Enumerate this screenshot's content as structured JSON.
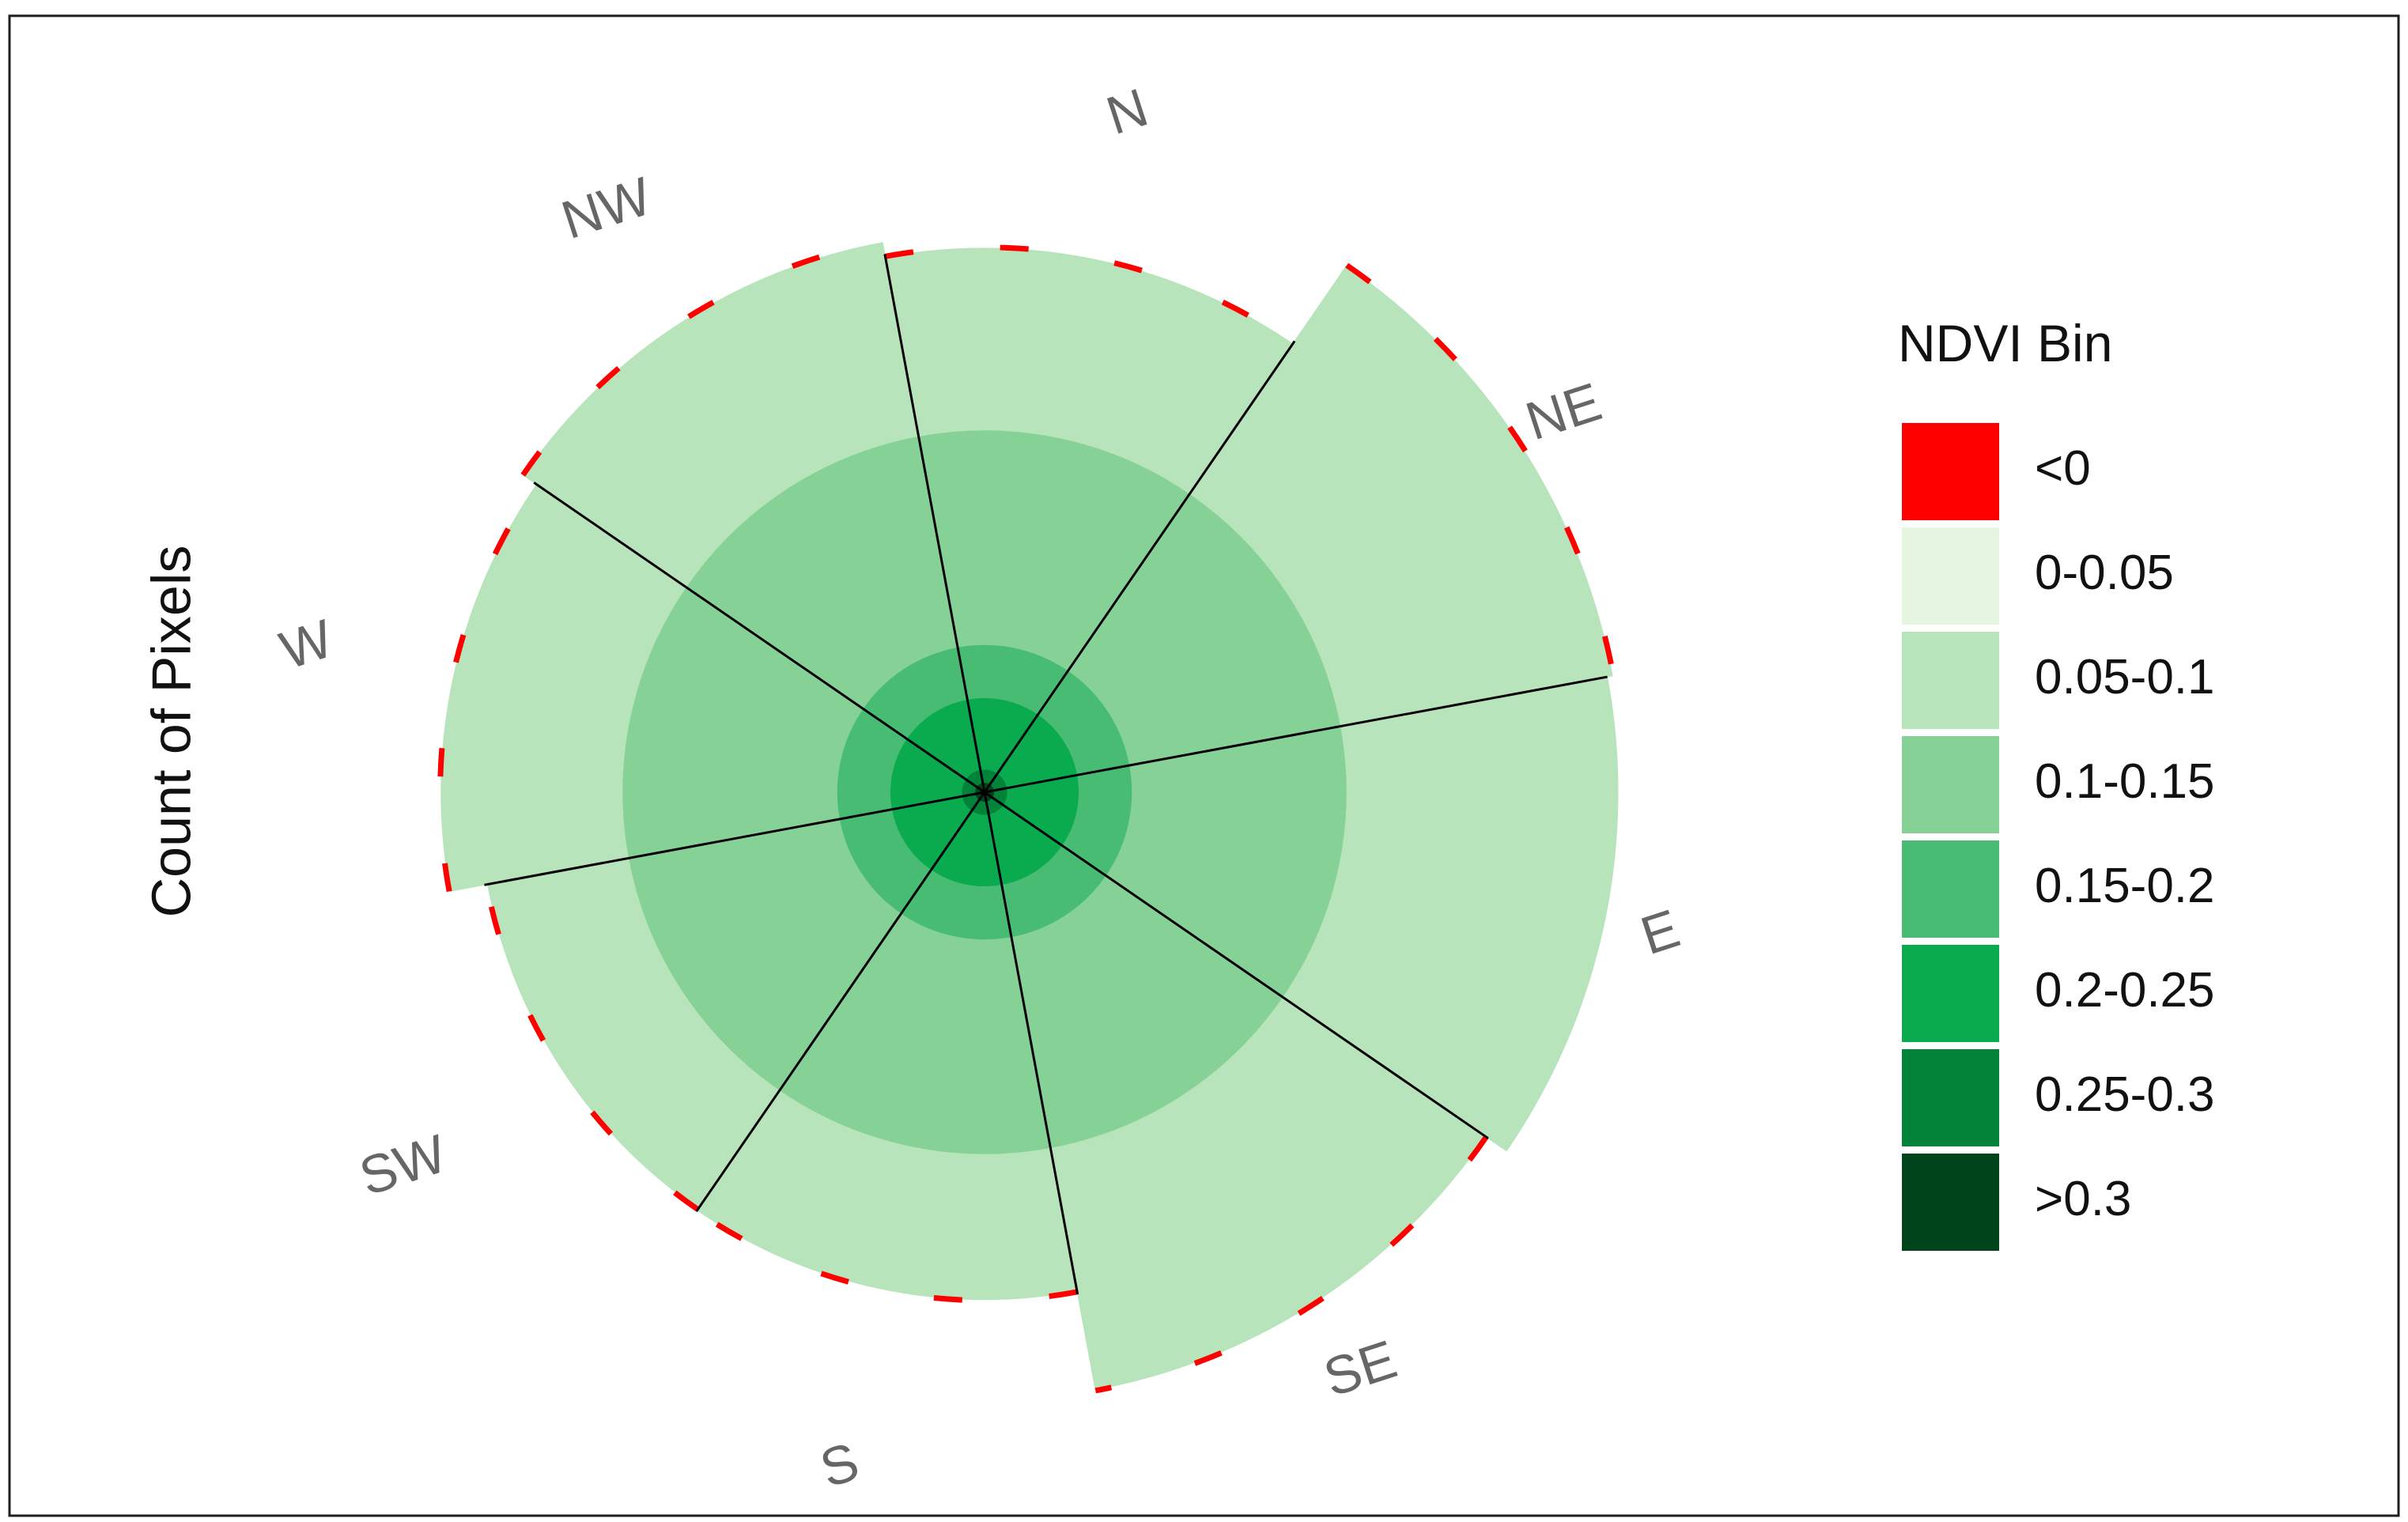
{
  "chart_data": {
    "type": "rose",
    "title": "",
    "ylabel": "Count of Pixels",
    "directions": [
      "N",
      "NE",
      "E",
      "SE",
      "S",
      "SW",
      "W",
      "NW"
    ],
    "direction_angles_deg": [
      0,
      45,
      90,
      135,
      180,
      225,
      270,
      315
    ],
    "wedge_width_deg": 45,
    "outer_radius_max": 1.0,
    "bins": [
      "<0",
      "0-0.05",
      "0.05-0.1",
      "0.1-0.15",
      "0.15-0.2",
      "0.2-0.25",
      "0.25-0.3",
      ">0.3"
    ],
    "series": [
      {
        "name": "<0",
        "values": [
          0.005,
          0.005,
          0.0,
          0.005,
          0.005,
          0.005,
          0.005,
          0.005
        ]
      },
      {
        "name": "0-0.05",
        "values": [
          0.0,
          0.0,
          0.0,
          0.0,
          0.0,
          0.0,
          0.0,
          0.0
        ]
      },
      {
        "name": "0.05-0.1",
        "values": [
          0.277,
          0.421,
          0.413,
          0.374,
          0.221,
          0.218,
          0.276,
          0.3
        ]
      },
      {
        "name": "0.1-0.15",
        "values": [
          0.327,
          0.327,
          0.327,
          0.327,
          0.327,
          0.327,
          0.327,
          0.327
        ]
      },
      {
        "name": "0.15-0.2",
        "values": [
          0.081,
          0.081,
          0.081,
          0.081,
          0.081,
          0.081,
          0.081,
          0.081
        ]
      },
      {
        "name": "0.2-0.25",
        "values": [
          0.109,
          0.109,
          0.109,
          0.109,
          0.109,
          0.109,
          0.109,
          0.109
        ]
      },
      {
        "name": "0.25-0.3",
        "values": [
          0.02,
          0.02,
          0.02,
          0.02,
          0.02,
          0.02,
          0.02,
          0.02
        ]
      },
      {
        "name": ">0.3",
        "values": [
          0.015,
          0.015,
          0.015,
          0.015,
          0.015,
          0.015,
          0.015,
          0.015
        ]
      }
    ],
    "legend": {
      "title": "NDVI Bin",
      "placement": "right",
      "entries": [
        "<0",
        "0-0.05",
        "0.05-0.1",
        "0.1-0.15",
        "0.15-0.2",
        "0.2-0.25",
        "0.25-0.3",
        ">0.3"
      ]
    },
    "colors": {
      "<0": "#ff0000",
      "0-0.05": "#e5f5e0",
      "0.05-0.1": "#b8e4bb",
      "0.1-0.15": "#86d296",
      "0.15-0.2": "#48bc72",
      "0.2-0.25": "#0aab4e",
      "0.25-0.3": "#02833a",
      ">0.3": "#00441b"
    },
    "direction_label_color": "#666666",
    "separator_color": "#000000",
    "grid": false
  }
}
